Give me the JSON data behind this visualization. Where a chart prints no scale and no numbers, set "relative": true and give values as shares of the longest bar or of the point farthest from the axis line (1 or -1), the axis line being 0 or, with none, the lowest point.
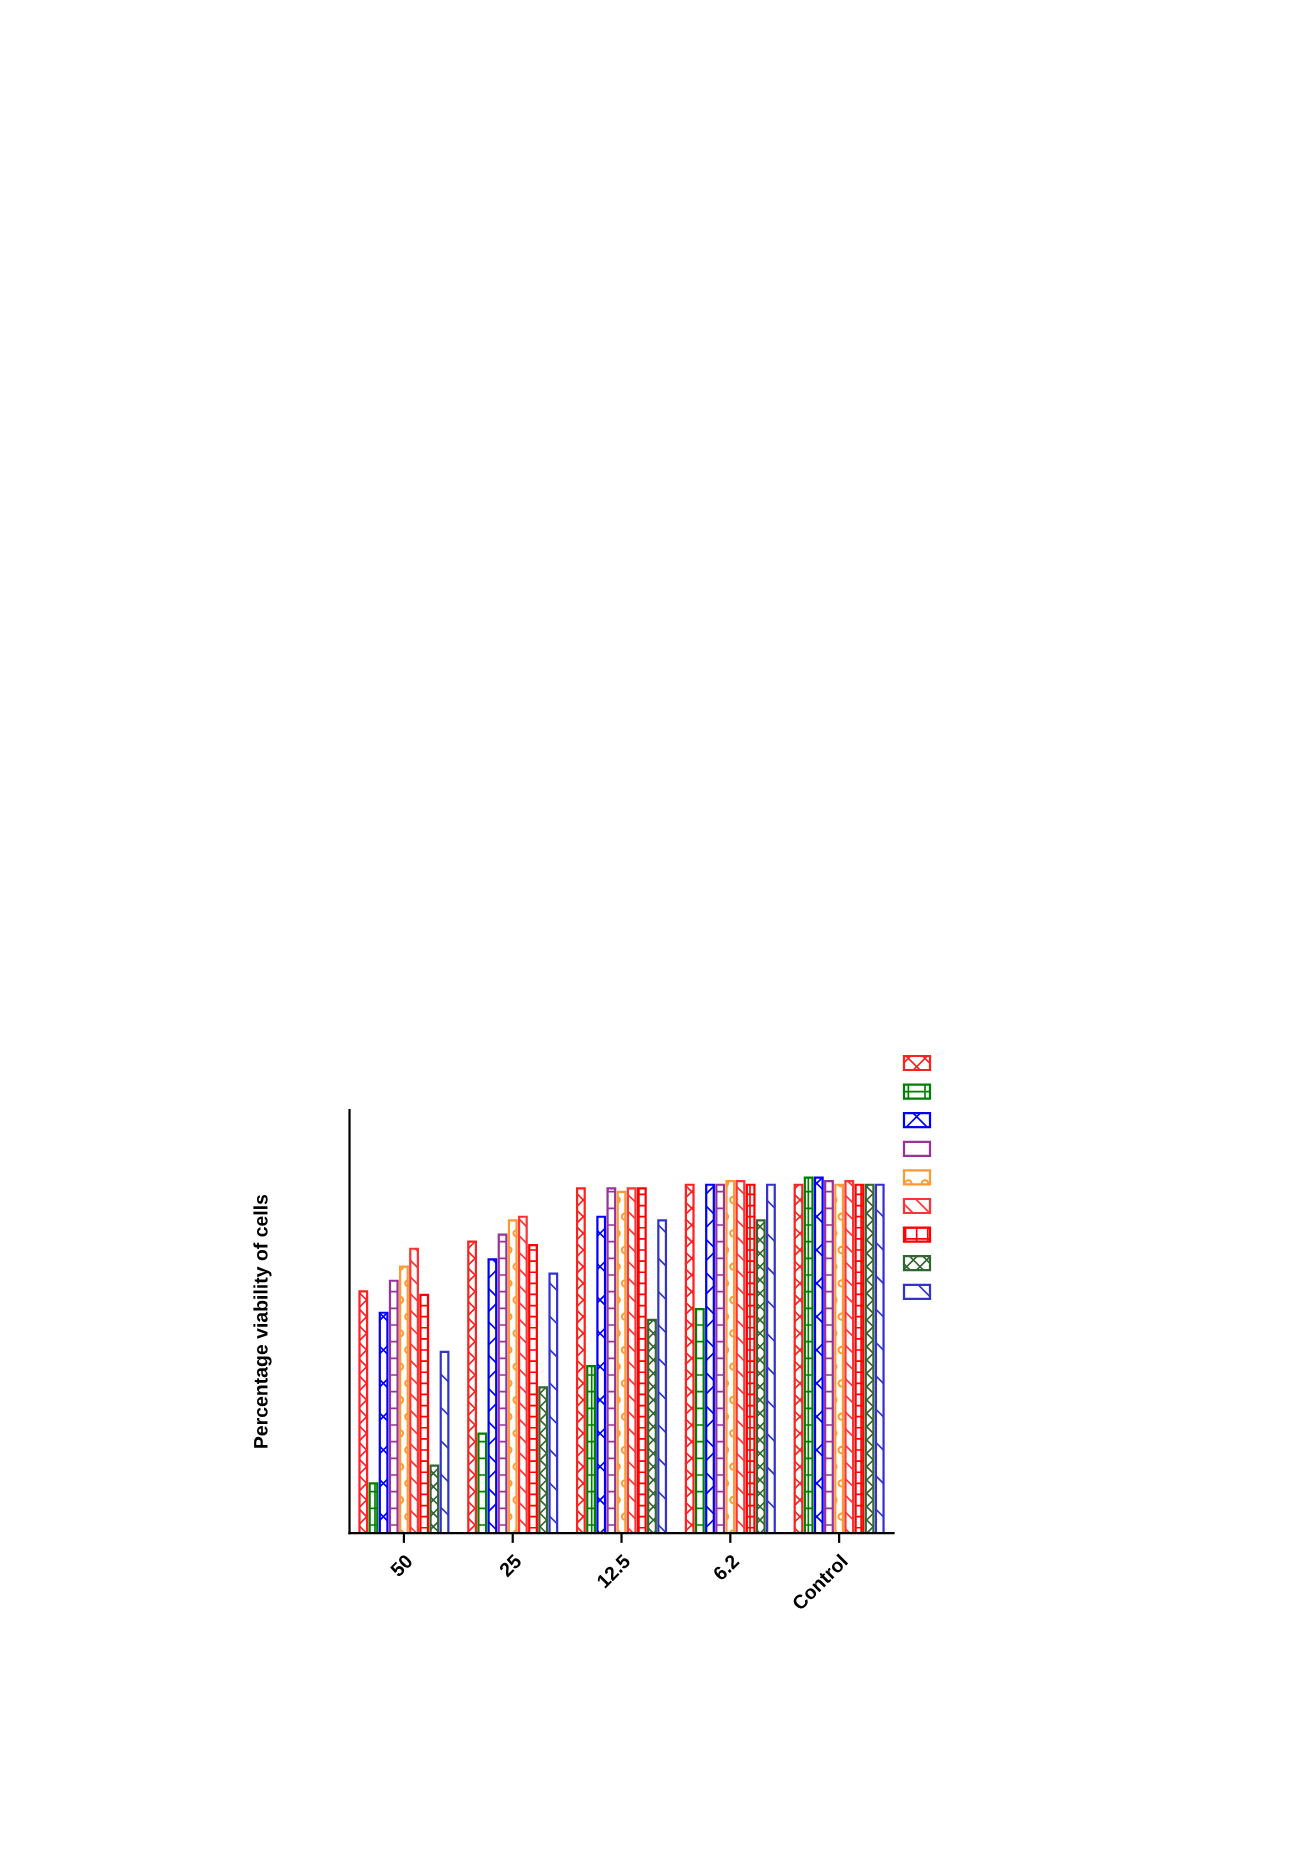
{
  "chart_data": {
    "type": "bar",
    "ylabel": "Percentage viability of cells",
    "relative": true,
    "grid": false,
    "categories": [
      "50",
      "25",
      "12.5",
      "6.2",
      "Control"
    ],
    "series": [
      {
        "color": "#ff2020",
        "values": [
          0.68,
          0.82,
          0.97,
          0.98,
          0.98
        ]
      },
      {
        "color": "#008000",
        "values": [
          0.14,
          0.28,
          0.47,
          0.63,
          1.0
        ]
      },
      {
        "color": "#0000ff",
        "values": [
          0.62,
          0.77,
          0.89,
          0.98,
          1.0
        ]
      },
      {
        "color": "#993399",
        "values": [
          0.71,
          0.84,
          0.97,
          0.98,
          0.99
        ]
      },
      {
        "color": "#ff9933",
        "values": [
          0.75,
          0.88,
          0.96,
          0.99,
          0.98
        ]
      },
      {
        "color": "#ff3333",
        "values": [
          0.8,
          0.89,
          0.97,
          0.99,
          0.99
        ]
      },
      {
        "color": "#ff0000",
        "values": [
          0.67,
          0.81,
          0.97,
          0.98,
          0.98
        ]
      },
      {
        "color": "#336633",
        "values": [
          0.19,
          0.41,
          0.6,
          0.88,
          0.98
        ]
      },
      {
        "color": "#3333cc",
        "values": [
          0.51,
          0.73,
          0.88,
          0.98,
          0.98
        ]
      }
    ]
  }
}
